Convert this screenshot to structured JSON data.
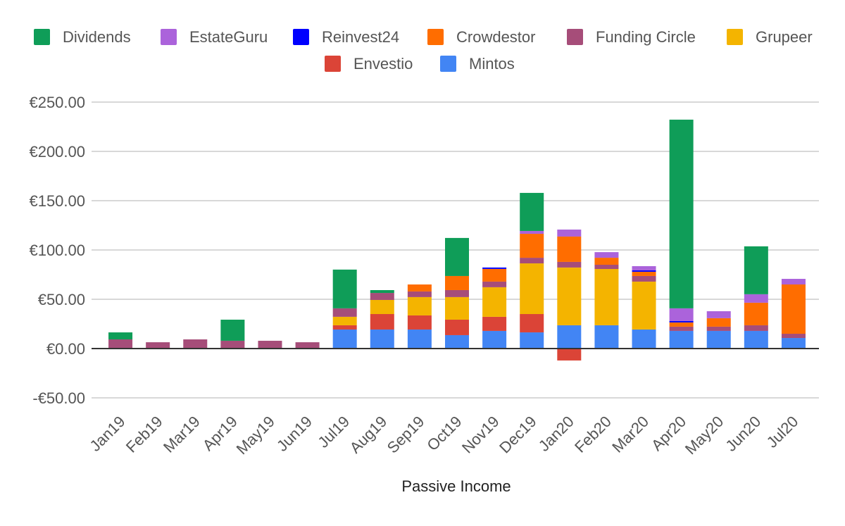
{
  "chart_data": {
    "type": "bar",
    "stacked": true,
    "title": "",
    "xlabel": "Passive Income",
    "ylabel": "",
    "ylim": [
      -50,
      250
    ],
    "yticks": [
      -50,
      0,
      50,
      100,
      150,
      200,
      250
    ],
    "ytick_labels": [
      "-€50.00",
      "€0.00",
      "€50.00",
      "€100.00",
      "€150.00",
      "€200.00",
      "€250.00"
    ],
    "grid": true,
    "legend_position": "top",
    "categories": [
      "Jan19",
      "Feb19",
      "Mar19",
      "Apr19",
      "May19",
      "Jun19",
      "Jul19",
      "Aug19",
      "Sep19",
      "Oct19",
      "Nov19",
      "Dec19",
      "Jan20",
      "Feb20",
      "Mar20",
      "Apr20",
      "May20",
      "Jun20",
      "Jul20"
    ],
    "series": [
      {
        "name": "Mintos",
        "color": "#4285f4",
        "values": [
          0,
          0,
          0,
          0,
          0,
          0,
          19.3,
          19.3,
          19.3,
          13.6,
          17.9,
          16.4,
          23.6,
          23.6,
          19.3,
          17.9,
          17.9,
          17.9,
          10.7
        ]
      },
      {
        "name": "Envestio",
        "color": "#db4437",
        "values": [
          0,
          0,
          0,
          0,
          0,
          0,
          4.3,
          15.7,
          14.3,
          15.7,
          14.3,
          18.6,
          -12.1,
          0,
          0,
          0,
          0,
          0,
          0
        ]
      },
      {
        "name": "Grupeer",
        "color": "#f4b400",
        "values": [
          0,
          0,
          0,
          0,
          0,
          0,
          8.6,
          14.3,
          18.6,
          22.9,
          30,
          51.4,
          58.6,
          57.1,
          48.6,
          0,
          0,
          0,
          0
        ]
      },
      {
        "name": "Funding Circle",
        "color": "#a64d79",
        "values": [
          9.3,
          6.4,
          9.3,
          7.9,
          7.9,
          6.4,
          8.6,
          7.1,
          5.7,
          7.1,
          5.7,
          5.7,
          5.7,
          4.3,
          5.7,
          4.3,
          4.3,
          5.7,
          4.3
        ]
      },
      {
        "name": "Crowdestor",
        "color": "#ff6d00",
        "values": [
          0,
          0,
          0,
          0,
          0,
          0,
          0,
          0,
          7.1,
          14.3,
          12.9,
          24.3,
          25.7,
          7.1,
          4.3,
          4.3,
          8.6,
          22.9,
          50
        ]
      },
      {
        "name": "Reinvest24",
        "color": "#0000ff",
        "values": [
          0,
          0,
          0,
          0,
          0,
          0,
          0,
          0,
          0,
          0,
          1.4,
          0,
          0,
          0,
          1.4,
          1.4,
          0,
          0,
          0
        ]
      },
      {
        "name": "EstateGuru",
        "color": "#ab63db",
        "values": [
          0,
          0,
          0,
          0,
          0,
          0,
          0,
          0,
          0,
          0,
          0,
          2.9,
          7.1,
          5.7,
          4.3,
          12.9,
          7.1,
          8.6,
          5.7
        ]
      },
      {
        "name": "Dividends",
        "color": "#0f9d58",
        "values": [
          7.1,
          0,
          0,
          21.4,
          0,
          0,
          39.3,
          2.9,
          0,
          38.6,
          0,
          38.6,
          0,
          0,
          0,
          191.4,
          0,
          48.6,
          0
        ]
      }
    ],
    "legend_order": [
      "Dividends",
      "EstateGuru",
      "Reinvest24",
      "Crowdestor",
      "Funding Circle",
      "Grupeer",
      "Envestio",
      "Mintos"
    ]
  }
}
